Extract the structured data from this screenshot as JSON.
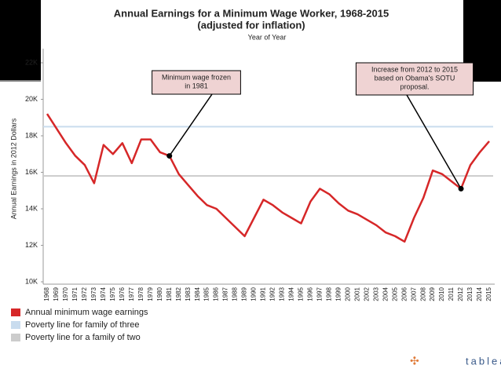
{
  "chart_data": {
    "type": "line",
    "title": "Annual Earnings for a Minimum Wage Worker, 1968-2015",
    "subtitle": "(adjusted for inflation)",
    "x_label": "Year of Year",
    "y_label": "Annual Earnings in 2012 Dollars",
    "categories": [
      "1968",
      "1969",
      "1970",
      "1971",
      "1972",
      "1973",
      "1974",
      "1975",
      "1976",
      "1977",
      "1978",
      "1979",
      "1980",
      "1981",
      "1982",
      "1983",
      "1984",
      "1985",
      "1986",
      "1987",
      "1988",
      "1989",
      "1990",
      "1991",
      "1992",
      "1993",
      "1994",
      "1995",
      "1996",
      "1997",
      "1998",
      "1999",
      "2000",
      "2001",
      "2002",
      "2003",
      "2004",
      "2005",
      "2006",
      "2007",
      "2008",
      "2009",
      "2010",
      "2011",
      "2012",
      "2013",
      "2014",
      "2015"
    ],
    "series": [
      {
        "name": "Annual minimum wage earnings",
        "color": "#d62728",
        "values": [
          19200,
          18400,
          17600,
          16900,
          16400,
          15400,
          17500,
          17000,
          17600,
          16500,
          17800,
          17800,
          17100,
          16900,
          15900,
          15300,
          14700,
          14200,
          14000,
          13500,
          13000,
          12500,
          13500,
          14500,
          14200,
          13800,
          13500,
          13200,
          14400,
          15100,
          14800,
          14300,
          13900,
          13700,
          13400,
          13100,
          12700,
          12500,
          12200,
          13500,
          14600,
          16100,
          15900,
          15500,
          15100,
          16400,
          17100,
          17700
        ]
      }
    ],
    "reference_lines": [
      {
        "name": "Poverty line for family of three",
        "color": "#c9dcee",
        "value": 18500
      },
      {
        "name": "Poverty line for a family of two",
        "color": "#cccccc",
        "value": 15800
      }
    ],
    "annotations": [
      {
        "text": [
          "Minimum wage frozen",
          "in 1981"
        ],
        "category": "1981"
      },
      {
        "text": [
          "Increase from 2012 to 2015",
          "based on Obama's SOTU",
          "proposal."
        ],
        "category": "2012"
      }
    ],
    "ylim": [
      10000,
      22000
    ],
    "yticks": [
      {
        "value": 10000,
        "label": "10K"
      },
      {
        "value": 12000,
        "label": "12K"
      },
      {
        "value": 14000,
        "label": "14K"
      },
      {
        "value": 16000,
        "label": "16K"
      },
      {
        "value": 18000,
        "label": "18K"
      },
      {
        "value": 20000,
        "label": "20K"
      },
      {
        "value": 22000,
        "label": "22K"
      }
    ],
    "grid": false,
    "logo": "tableau"
  }
}
